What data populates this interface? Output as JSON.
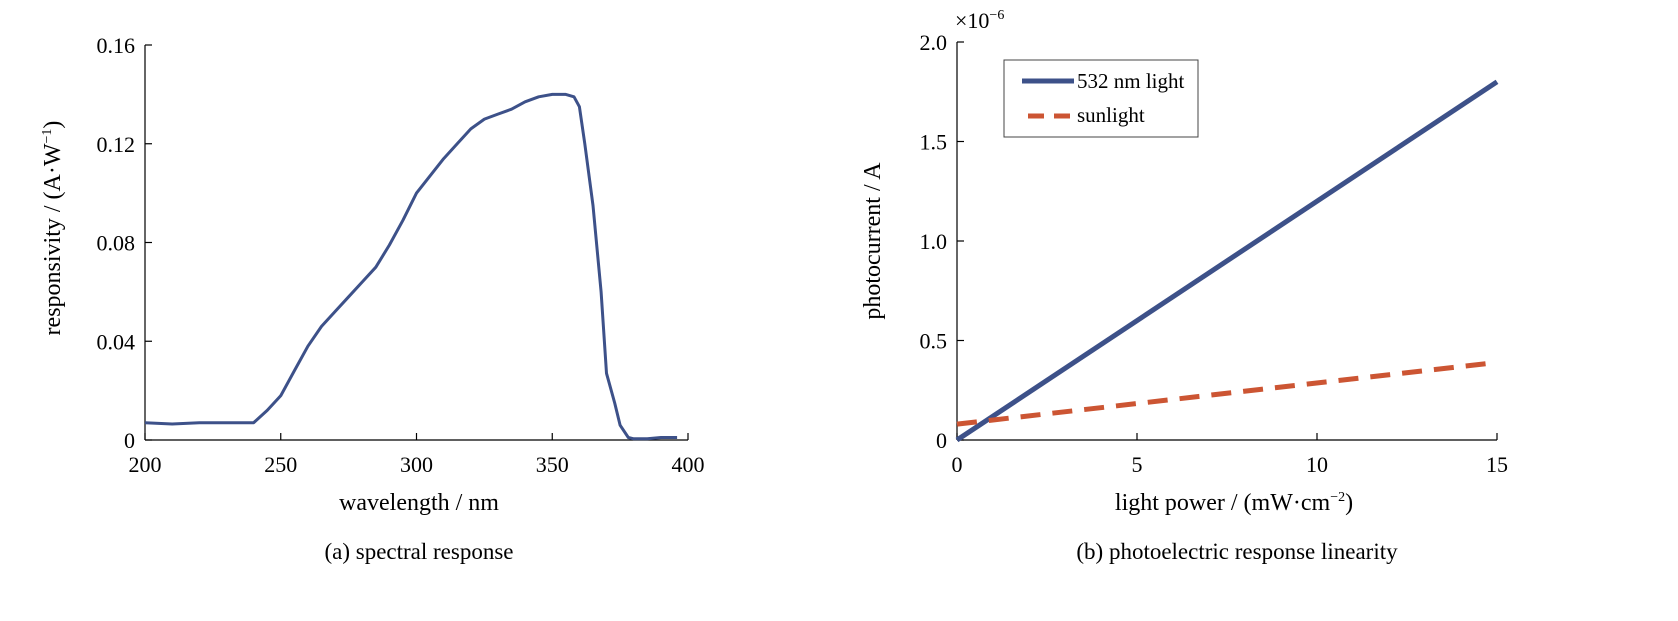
{
  "chart_data": [
    {
      "type": "line",
      "caption": "(a) spectral response",
      "xlabel": "wavelength / nm",
      "ylabel_main": "responsivity / (A·W",
      "ylabel_sup": "−1",
      "ylabel_close": ")",
      "xlim": [
        200,
        400
      ],
      "ylim": [
        0,
        0.16
      ],
      "xticks": [
        200,
        250,
        300,
        350,
        400
      ],
      "yticks": [
        0,
        0.04,
        0.08,
        0.12,
        0.16
      ],
      "ytick_labels": [
        "0",
        "0.04",
        "0.08",
        "0.12",
        "0.16"
      ],
      "grid": false,
      "color": "#3d5189",
      "series": [
        {
          "x": [
            200,
            210,
            220,
            230,
            240,
            245,
            250,
            255,
            260,
            265,
            270,
            275,
            280,
            285,
            290,
            295,
            300,
            305,
            310,
            315,
            320,
            325,
            330,
            335,
            340,
            345,
            350,
            355,
            358,
            360,
            362,
            365,
            368,
            370,
            373,
            375,
            378,
            380,
            385,
            390,
            396
          ],
          "y": [
            0.007,
            0.0065,
            0.007,
            0.007,
            0.007,
            0.012,
            0.018,
            0.028,
            0.038,
            0.046,
            0.052,
            0.058,
            0.064,
            0.07,
            0.079,
            0.089,
            0.1,
            0.107,
            0.114,
            0.12,
            0.126,
            0.13,
            0.132,
            0.134,
            0.137,
            0.139,
            0.14,
            0.14,
            0.139,
            0.135,
            0.12,
            0.095,
            0.06,
            0.027,
            0.015,
            0.006,
            0.001,
            0.0005,
            0.0005,
            0.001,
            0.001
          ]
        }
      ]
    },
    {
      "type": "line",
      "caption": "(b) photoelectric response linearity",
      "xlabel_main": "light power / (mW·cm",
      "xlabel_sup": "−2",
      "xlabel_close": ")",
      "ylabel": "photocurrent / A",
      "multiplier_base": "×10",
      "multiplier_exp": "−6",
      "xlim": [
        0,
        15
      ],
      "ylim": [
        0,
        2.0
      ],
      "xticks": [
        0,
        5,
        10,
        15
      ],
      "yticks": [
        0,
        0.5,
        1.0,
        1.5,
        2.0
      ],
      "ytick_labels": [
        "0",
        "0.5",
        "1.0",
        "1.5",
        "2.0"
      ],
      "grid": false,
      "legend_position": "top-left",
      "series": [
        {
          "name": "532 nm light",
          "x": [
            0,
            15
          ],
          "y": [
            0,
            1.8
          ],
          "color": "#3d5189",
          "style": "solid"
        },
        {
          "name": "sunlight",
          "x": [
            0,
            15
          ],
          "y": [
            0.08,
            0.39
          ],
          "color": "#cc5533",
          "style": "dashed"
        }
      ]
    }
  ]
}
